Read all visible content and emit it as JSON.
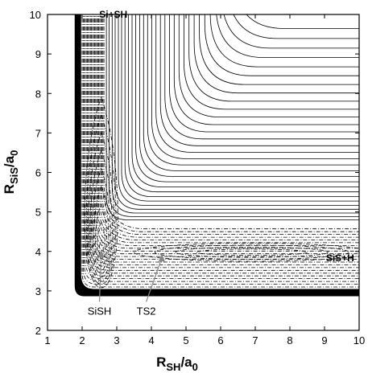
{
  "chart_data": {
    "type": "contour",
    "title": "",
    "xlabel": {
      "main": "R",
      "sub": "SH",
      "tail": "/a",
      "tailsub": "0"
    },
    "ylabel": {
      "main": "R",
      "sub": "SiS",
      "tail": "/a",
      "tailsub": "0"
    },
    "xlim": [
      1,
      10
    ],
    "ylim": [
      2,
      10
    ],
    "xticks": [
      "1",
      "2",
      "3",
      "4",
      "5",
      "6",
      "7",
      "8",
      "9",
      "10"
    ],
    "yticks": [
      "2",
      "3",
      "4",
      "5",
      "6",
      "7",
      "8",
      "9",
      "10"
    ],
    "grid": false,
    "contour_styles": [
      "solid",
      "dash-dot"
    ],
    "annotations": [
      {
        "text": "Si+SH",
        "x": 2.9,
        "y": 9.92
      },
      {
        "text": "SiS+H",
        "x": 9.45,
        "y": 3.75
      },
      {
        "text": "SiSH",
        "x": 2.5,
        "y": 2.48,
        "point": [
          2.55,
          4.05
        ]
      },
      {
        "text": "TS2",
        "x": 3.85,
        "y": 2.48,
        "point": [
          4.3,
          3.95
        ]
      }
    ],
    "features": [
      {
        "name": "SiSH",
        "x": 2.55,
        "y": 4.05
      },
      {
        "name": "TS2",
        "x": 4.3,
        "y": 3.95
      }
    ]
  }
}
